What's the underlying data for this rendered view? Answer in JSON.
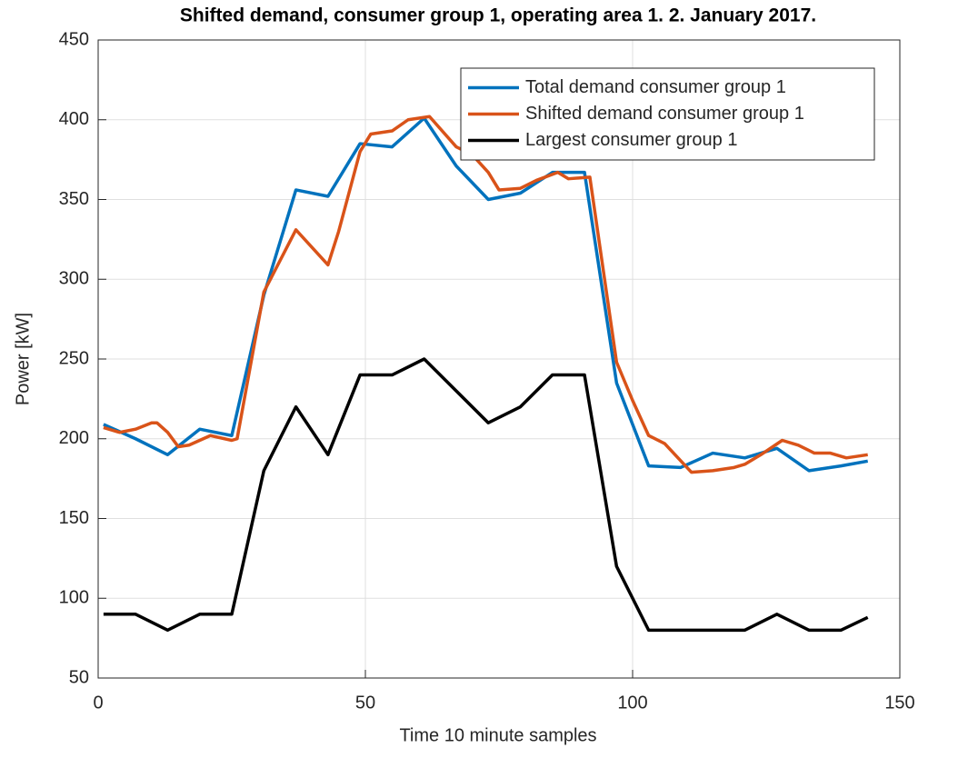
{
  "chart_data": {
    "type": "line",
    "title": "Shifted demand, consumer group 1, operating area 1. 2. January 2017.",
    "x_label": "Time 10 minute samples",
    "y_label": "Power [kW]",
    "xlim": [
      0,
      150
    ],
    "xticks": [
      0,
      50,
      100,
      150
    ],
    "ylim": [
      50,
      450
    ],
    "yticks": [
      50,
      100,
      150,
      200,
      250,
      300,
      350,
      400,
      450
    ],
    "grid": true,
    "legend": "northeast",
    "series": [
      {
        "name": "Total demand consumer group 1",
        "color": "#0072BD",
        "x": [
          1,
          7,
          13,
          19,
          25,
          31,
          37,
          43,
          49,
          55,
          61,
          67,
          73,
          79,
          85,
          91,
          97,
          103,
          109,
          115,
          121,
          127,
          133,
          139,
          144
        ],
        "values": [
          209,
          200,
          190,
          206,
          202,
          290,
          356,
          352,
          385,
          383,
          401,
          371,
          350,
          354,
          367,
          367,
          235,
          183,
          182,
          191,
          188,
          194,
          180,
          183,
          186
        ]
      },
      {
        "name": "Shifted demand consumer group 1",
        "color": "#D95319",
        "x": [
          1,
          4,
          7,
          10,
          11,
          13,
          15,
          17,
          21,
          25,
          26,
          31,
          37,
          43,
          45,
          49,
          51,
          55,
          58,
          62,
          67,
          70,
          73,
          75,
          79,
          82,
          86,
          88,
          92,
          97,
          100,
          103,
          106,
          111,
          115,
          119,
          121,
          124,
          128,
          131,
          134,
          137,
          140,
          144
        ],
        "values": [
          207,
          204,
          206,
          210,
          210,
          204,
          195,
          196,
          202,
          199,
          200,
          292,
          331,
          309,
          330,
          380,
          391,
          393,
          400,
          402,
          383,
          378,
          367,
          356,
          357,
          362,
          367,
          363,
          364,
          248,
          224,
          202,
          197,
          179,
          180,
          182,
          184,
          190,
          199,
          196,
          191,
          191,
          188,
          190
        ]
      },
      {
        "name": "Largest consumer group 1",
        "color": "#000000",
        "x": [
          1,
          7,
          13,
          19,
          25,
          31,
          37,
          43,
          49,
          55,
          61,
          67,
          73,
          79,
          85,
          91,
          97,
          103,
          109,
          115,
          121,
          127,
          133,
          139,
          144
        ],
        "values": [
          90,
          90,
          80,
          90,
          90,
          180,
          220,
          190,
          240,
          240,
          250,
          230,
          210,
          220,
          240,
          240,
          120,
          80,
          80,
          80,
          80,
          90,
          80,
          80,
          88
        ]
      }
    ]
  }
}
